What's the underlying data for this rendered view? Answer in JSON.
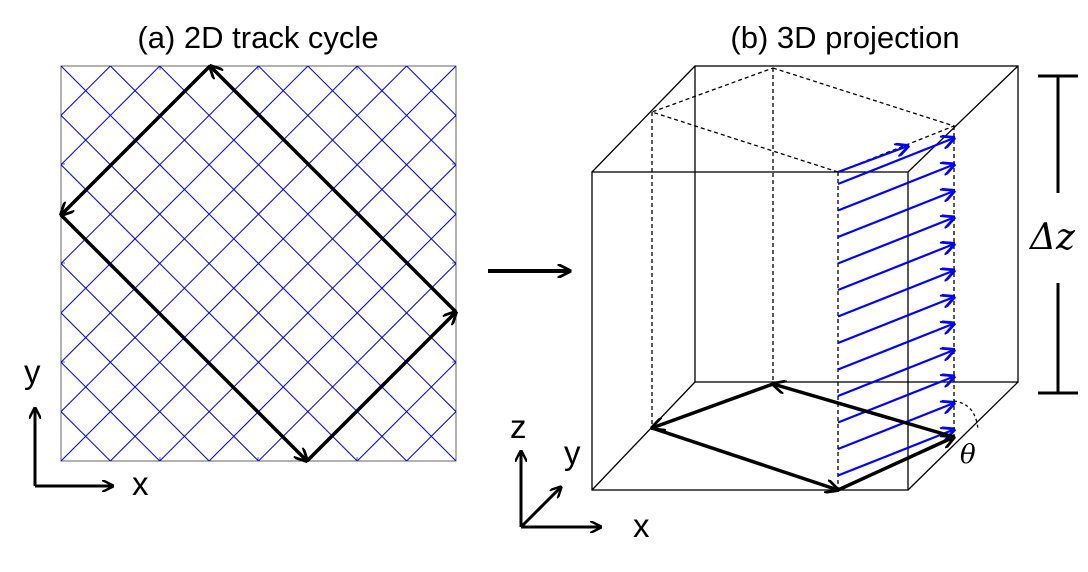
{
  "panel_a": {
    "title": "(a) 2D track cycle",
    "axis_x": "x",
    "axis_y": "y",
    "grid_color": "#0000ff",
    "track_color": "#000000"
  },
  "panel_b": {
    "title": "(b) 3D projection",
    "axis_x": "x",
    "axis_y": "y",
    "axis_z": "z",
    "delta_z_label": "Δz",
    "theta_label": "θ",
    "arrow_color": "#0000ff",
    "track_color": "#000000"
  }
}
